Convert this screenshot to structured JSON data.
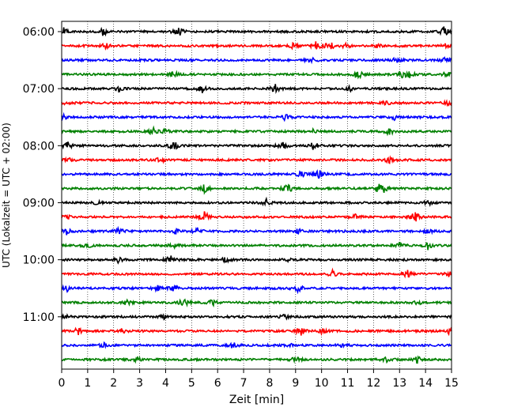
{
  "chart_data": {
    "type": "line",
    "title": "",
    "xlabel": "Zeit  [min]",
    "ylabel": "UTC (Lokalzeit = UTC + 02:00)",
    "xlim": [
      0,
      15
    ],
    "x_ticks": [
      0,
      1,
      2,
      3,
      4,
      5,
      6,
      7,
      8,
      9,
      10,
      11,
      12,
      13,
      14,
      15
    ],
    "x_tick_labels": [
      "0",
      "1",
      "2",
      "3",
      "4",
      "5",
      "6",
      "7",
      "8",
      "9",
      "10",
      "11",
      "12",
      "13",
      "14",
      "15"
    ],
    "y_tick_labels": [
      "06:00",
      "07:00",
      "08:00",
      "09:00",
      "10:00",
      "11:00"
    ],
    "grid": "vertical dotted",
    "color_cycle": [
      "#000000",
      "#ff0000",
      "#0000ff",
      "#008000"
    ],
    "traces": [
      {
        "start": "06:00",
        "color": "#000000",
        "events": [
          {
            "t": 0.1,
            "a": 5
          },
          {
            "t": 1.6,
            "a": 5
          },
          {
            "t": 4.5,
            "a": 7
          },
          {
            "t": 14.7,
            "a": 7
          }
        ]
      },
      {
        "start": "06:15",
        "color": "#ff0000",
        "events": [
          {
            "t": 1.7,
            "a": 4
          },
          {
            "t": 8.9,
            "a": 3
          },
          {
            "t": 9.8,
            "a": 6
          },
          {
            "t": 10.3,
            "a": 7
          },
          {
            "t": 10.9,
            "a": 3
          },
          {
            "t": 12.1,
            "a": 3
          },
          {
            "t": 14.8,
            "a": 3
          }
        ]
      },
      {
        "start": "06:30",
        "color": "#0000ff",
        "events": [
          {
            "t": 9.6,
            "a": 4
          },
          {
            "t": 12.9,
            "a": 4
          },
          {
            "t": 14.8,
            "a": 4
          }
        ]
      },
      {
        "start": "06:45",
        "color": "#008000",
        "events": [
          {
            "t": 4.3,
            "a": 6
          },
          {
            "t": 11.4,
            "a": 7
          },
          {
            "t": 13.1,
            "a": 4
          },
          {
            "t": 13.4,
            "a": 4
          },
          {
            "t": 14.8,
            "a": 4
          }
        ]
      },
      {
        "start": "07:00",
        "color": "#000000",
        "events": [
          {
            "t": 2.2,
            "a": 3
          },
          {
            "t": 5.4,
            "a": 5
          },
          {
            "t": 8.2,
            "a": 6
          },
          {
            "t": 11.1,
            "a": 3
          }
        ]
      },
      {
        "start": "07:15",
        "color": "#ff0000",
        "events": [
          {
            "t": 0.2,
            "a": 3
          },
          {
            "t": 12.5,
            "a": 3
          },
          {
            "t": 14.9,
            "a": 3
          }
        ]
      },
      {
        "start": "07:30",
        "color": "#0000ff",
        "events": [
          {
            "t": 0.1,
            "a": 3
          },
          {
            "t": 8.6,
            "a": 4
          },
          {
            "t": 12.8,
            "a": 3
          }
        ]
      },
      {
        "start": "07:45",
        "color": "#008000",
        "events": [
          {
            "t": 3.5,
            "a": 5
          },
          {
            "t": 4.0,
            "a": 3
          },
          {
            "t": 9.7,
            "a": 3
          },
          {
            "t": 12.6,
            "a": 6
          }
        ]
      },
      {
        "start": "08:00",
        "color": "#000000",
        "events": [
          {
            "t": 0.2,
            "a": 6
          },
          {
            "t": 4.3,
            "a": 7
          },
          {
            "t": 8.5,
            "a": 7
          },
          {
            "t": 9.7,
            "a": 6
          }
        ]
      },
      {
        "start": "08:15",
        "color": "#ff0000",
        "events": [
          {
            "t": 0.3,
            "a": 3
          },
          {
            "t": 3.8,
            "a": 4
          },
          {
            "t": 12.6,
            "a": 4
          }
        ]
      },
      {
        "start": "08:30",
        "color": "#0000ff",
        "events": [
          {
            "t": 9.2,
            "a": 4
          },
          {
            "t": 9.9,
            "a": 6
          }
        ]
      },
      {
        "start": "08:45",
        "color": "#008000",
        "events": [
          {
            "t": 5.5,
            "a": 6
          },
          {
            "t": 8.7,
            "a": 7
          },
          {
            "t": 12.2,
            "a": 5
          },
          {
            "t": 12.4,
            "a": 4
          }
        ]
      },
      {
        "start": "09:00",
        "color": "#000000",
        "events": [
          {
            "t": 1.4,
            "a": 3
          },
          {
            "t": 7.9,
            "a": 5
          },
          {
            "t": 14.1,
            "a": 3
          }
        ]
      },
      {
        "start": "09:15",
        "color": "#ff0000",
        "events": [
          {
            "t": 0.2,
            "a": 3
          },
          {
            "t": 5.5,
            "a": 7
          },
          {
            "t": 11.3,
            "a": 3
          },
          {
            "t": 13.6,
            "a": 7
          }
        ]
      },
      {
        "start": "09:30",
        "color": "#0000ff",
        "events": [
          {
            "t": 0.2,
            "a": 4
          },
          {
            "t": 2.2,
            "a": 5
          },
          {
            "t": 4.4,
            "a": 3
          },
          {
            "t": 5.2,
            "a": 5
          },
          {
            "t": 9.1,
            "a": 3
          },
          {
            "t": 14.1,
            "a": 3
          }
        ]
      },
      {
        "start": "09:45",
        "color": "#008000",
        "events": [
          {
            "t": 1.0,
            "a": 3
          },
          {
            "t": 4.3,
            "a": 3
          },
          {
            "t": 13.0,
            "a": 3
          },
          {
            "t": 14.1,
            "a": 5
          }
        ]
      },
      {
        "start": "10:00",
        "color": "#000000",
        "events": [
          {
            "t": 2.2,
            "a": 4
          },
          {
            "t": 4.2,
            "a": 6
          },
          {
            "t": 6.3,
            "a": 3
          },
          {
            "t": 8.8,
            "a": 3
          }
        ]
      },
      {
        "start": "10:15",
        "color": "#ff0000",
        "events": [
          {
            "t": 10.4,
            "a": 5
          },
          {
            "t": 13.3,
            "a": 6
          },
          {
            "t": 14.9,
            "a": 3
          }
        ]
      },
      {
        "start": "10:30",
        "color": "#0000ff",
        "events": [
          {
            "t": 0.2,
            "a": 4
          },
          {
            "t": 3.7,
            "a": 4
          },
          {
            "t": 4.3,
            "a": 5
          },
          {
            "t": 9.1,
            "a": 6
          }
        ]
      },
      {
        "start": "10:45",
        "color": "#008000",
        "events": [
          {
            "t": 2.5,
            "a": 3
          },
          {
            "t": 4.7,
            "a": 6
          },
          {
            "t": 5.8,
            "a": 4
          },
          {
            "t": 13.7,
            "a": 3
          }
        ]
      },
      {
        "start": "11:00",
        "color": "#000000",
        "events": [
          {
            "t": 0.1,
            "a": 3
          },
          {
            "t": 3.9,
            "a": 3
          },
          {
            "t": 8.6,
            "a": 3
          }
        ]
      },
      {
        "start": "11:15",
        "color": "#ff0000",
        "events": [
          {
            "t": 0.6,
            "a": 6
          },
          {
            "t": 2.3,
            "a": 3
          },
          {
            "t": 9.2,
            "a": 6
          },
          {
            "t": 10.0,
            "a": 3
          },
          {
            "t": 14.9,
            "a": 3
          }
        ]
      },
      {
        "start": "11:30",
        "color": "#0000ff",
        "events": [
          {
            "t": 1.6,
            "a": 3
          },
          {
            "t": 6.6,
            "a": 4
          },
          {
            "t": 8.8,
            "a": 3
          },
          {
            "t": 10.8,
            "a": 3
          }
        ]
      },
      {
        "start": "11:45",
        "color": "#008000",
        "events": [
          {
            "t": 2.9,
            "a": 3
          },
          {
            "t": 9.0,
            "a": 4
          },
          {
            "t": 12.5,
            "a": 3
          },
          {
            "t": 13.7,
            "a": 5
          }
        ]
      }
    ]
  }
}
